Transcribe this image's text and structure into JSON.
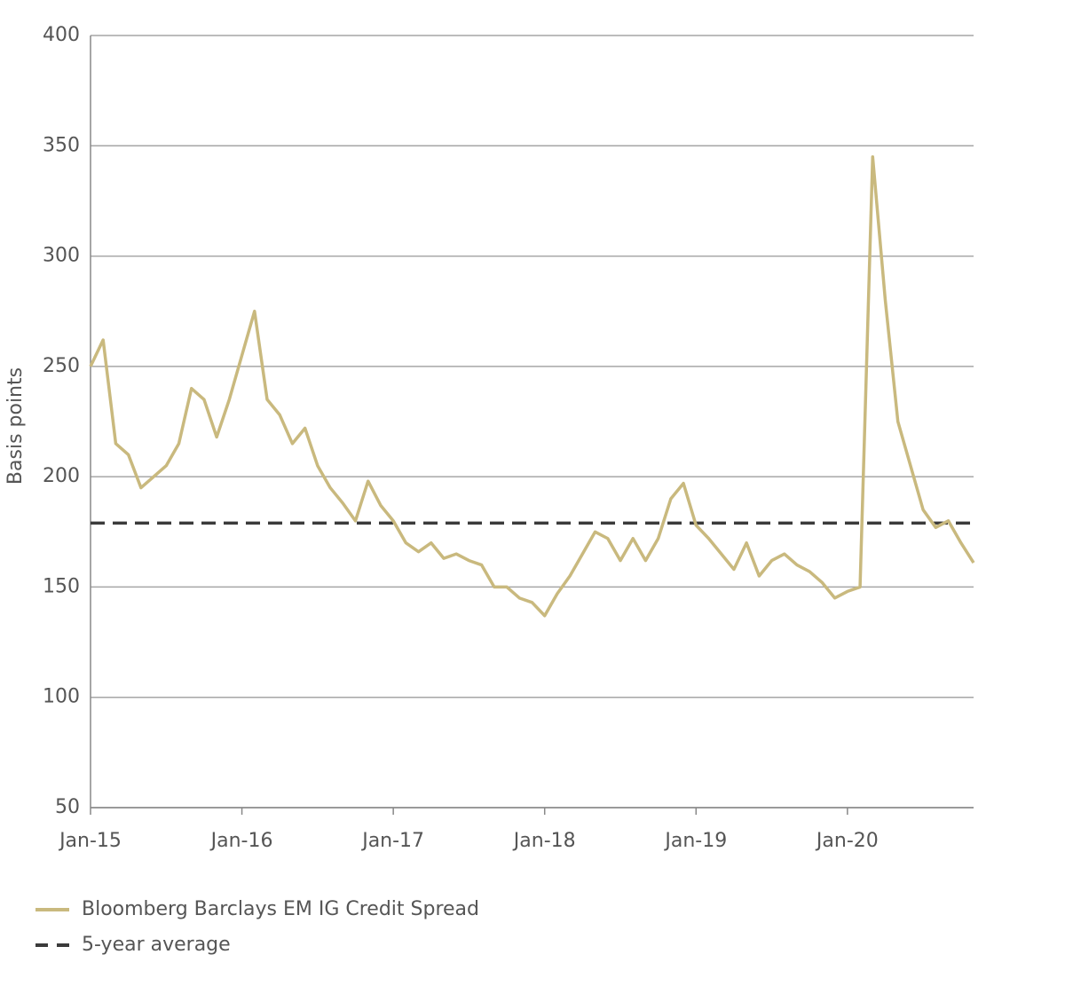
{
  "chart_data": {
    "type": "line",
    "y_label": "Basis points",
    "x": [
      "2015-01",
      "2015-02",
      "2015-03",
      "2015-04",
      "2015-05",
      "2015-06",
      "2015-07",
      "2015-08",
      "2015-09",
      "2015-10",
      "2015-11",
      "2015-12",
      "2016-01",
      "2016-02",
      "2016-03",
      "2016-04",
      "2016-05",
      "2016-06",
      "2016-07",
      "2016-08",
      "2016-09",
      "2016-10",
      "2016-11",
      "2016-12",
      "2017-01",
      "2017-02",
      "2017-03",
      "2017-04",
      "2017-05",
      "2017-06",
      "2017-07",
      "2017-08",
      "2017-09",
      "2017-10",
      "2017-11",
      "2017-12",
      "2018-01",
      "2018-02",
      "2018-03",
      "2018-04",
      "2018-05",
      "2018-06",
      "2018-07",
      "2018-08",
      "2018-09",
      "2018-10",
      "2018-11",
      "2018-12",
      "2019-01",
      "2019-02",
      "2019-03",
      "2019-04",
      "2019-05",
      "2019-06",
      "2019-07",
      "2019-08",
      "2019-09",
      "2019-10",
      "2019-11",
      "2019-12",
      "2020-01",
      "2020-02",
      "2020-03",
      "2020-04",
      "2020-05",
      "2020-06",
      "2020-07",
      "2020-08",
      "2020-09",
      "2020-10",
      "2020-11"
    ],
    "series": [
      {
        "name": "Bloomberg Barclays EM IG Credit Spread",
        "color": "#c9b97e",
        "values": [
          250,
          262,
          215,
          210,
          195,
          200,
          205,
          215,
          240,
          235,
          218,
          235,
          255,
          275,
          235,
          228,
          215,
          222,
          205,
          195,
          188,
          180,
          198,
          187,
          180,
          170,
          166,
          170,
          163,
          165,
          162,
          160,
          150,
          150,
          145,
          143,
          137,
          147,
          155,
          165,
          175,
          172,
          162,
          172,
          162,
          172,
          190,
          197,
          178,
          172,
          165,
          158,
          170,
          155,
          162,
          165,
          160,
          157,
          152,
          145,
          148,
          150,
          345,
          280,
          225,
          205,
          185,
          177,
          180,
          170,
          161
        ]
      }
    ],
    "reference_line": {
      "name": "5-year average",
      "value": 179,
      "color": "#3b3b3b",
      "dashed": true
    },
    "xlim": [
      "2015-01",
      "2020-11"
    ],
    "xticks": [
      {
        "value": "2015-01",
        "label": "Jan-15"
      },
      {
        "value": "2016-01",
        "label": "Jan-16"
      },
      {
        "value": "2017-01",
        "label": "Jan-17"
      },
      {
        "value": "2018-01",
        "label": "Jan-18"
      },
      {
        "value": "2019-01",
        "label": "Jan-19"
      },
      {
        "value": "2020-01",
        "label": "Jan-20"
      }
    ],
    "ylim": [
      50,
      400
    ],
    "yticks": [
      50,
      100,
      150,
      200,
      250,
      300,
      350,
      400
    ],
    "grid": true
  }
}
